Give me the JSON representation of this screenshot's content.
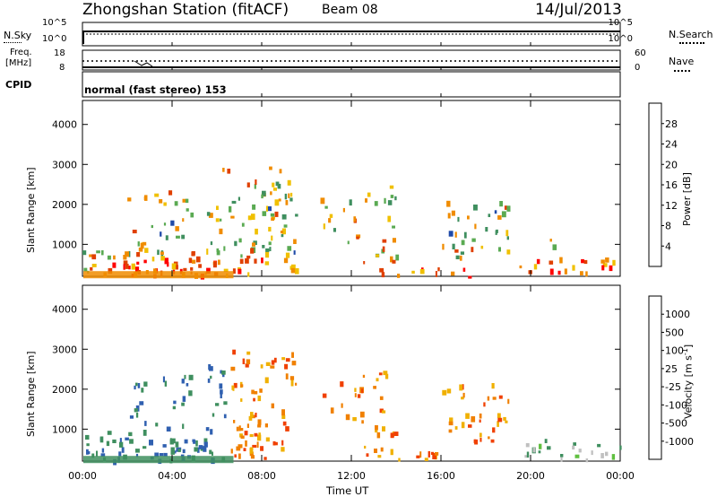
{
  "header": {
    "title": "Zhongshan Station (fitACF)",
    "beam": "Beam 08",
    "date": "14/Jul/2013"
  },
  "noise_panel": {
    "left_label": "N.Sky",
    "right_label": "N.Search",
    "left_ticks": [
      "10^5",
      "10^0"
    ],
    "right_ticks": [
      "10^5",
      "10^0"
    ]
  },
  "freq_panel": {
    "left_label_top": "Freq.",
    "left_label_unit": "[MHz]",
    "right_label": "Nave",
    "left_ticks": [
      "18",
      "8"
    ],
    "right_ticks": [
      "60",
      "0"
    ]
  },
  "cpid": {
    "label": "CPID",
    "mode_text": "normal (fast stereo) 153"
  },
  "chart_data": [
    {
      "type": "heatmap",
      "name": "power",
      "ylabel": "Slant Range [km]",
      "x": [
        "00:00",
        "04:00",
        "08:00",
        "12:00",
        "16:00",
        "20:00",
        "00:00"
      ],
      "ylim": [
        200,
        4600
      ],
      "yticks": [
        1000,
        2000,
        3000,
        4000
      ],
      "colorbar": {
        "label": "Power [dB]",
        "ticks": [
          "28",
          "24",
          "20",
          "16",
          "12",
          "8",
          "4"
        ],
        "colors": [
          "#0000ff",
          "#1f4aa8",
          "#3f8f5f",
          "#5aaa52",
          "#f0c000",
          "#f08c00",
          "#e04000",
          "#ff0000"
        ]
      }
    },
    {
      "type": "heatmap",
      "name": "velocity",
      "ylabel": "Slant Range [km]",
      "xlabel": "Time UT",
      "x": [
        "00:00",
        "04:00",
        "08:00",
        "12:00",
        "16:00",
        "20:00",
        "00:00"
      ],
      "ylim": [
        200,
        4600
      ],
      "yticks": [
        1000,
        2000,
        3000,
        4000
      ],
      "colorbar": {
        "label": "Velocity [m s",
        "label_sup": "-1",
        "label_end": "]",
        "ticks": [
          "1000",
          "500",
          "100",
          "25",
          "-25",
          "-100",
          "-500",
          "-1000"
        ],
        "colors": [
          "#ff0000",
          "#f04000",
          "#f08000",
          "#f0b000",
          "#c0c0c0",
          "#60c040",
          "#3f8f5f",
          "#3060b0",
          "#2020c0"
        ]
      }
    }
  ]
}
